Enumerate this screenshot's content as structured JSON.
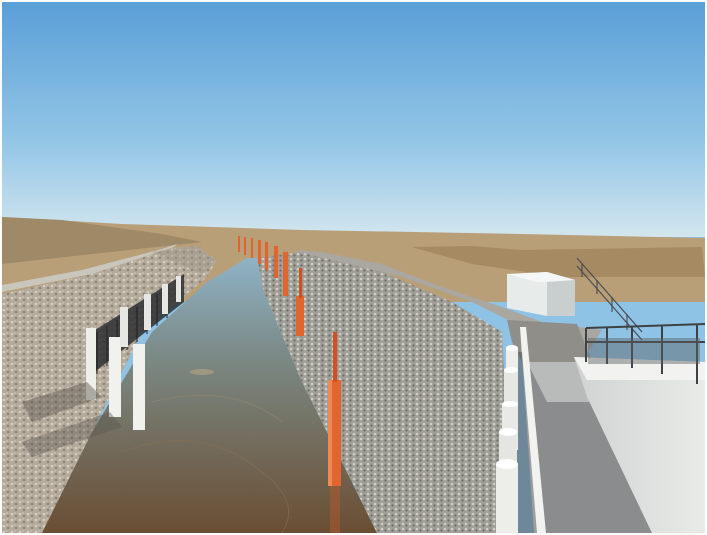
{
  "photo": {
    "subject": "drainage-channel",
    "palette": {
      "sky_top": "#5aa0d8",
      "sky_horizon": "#cfe3ef",
      "grass": "#b9a27a",
      "gravel": "#b8afa2",
      "water": "#6b6a5a",
      "marker_post": "#e0652f",
      "concrete": "#d9dbd8",
      "shed": "#e6eceb",
      "fence": "#3d4043"
    }
  }
}
